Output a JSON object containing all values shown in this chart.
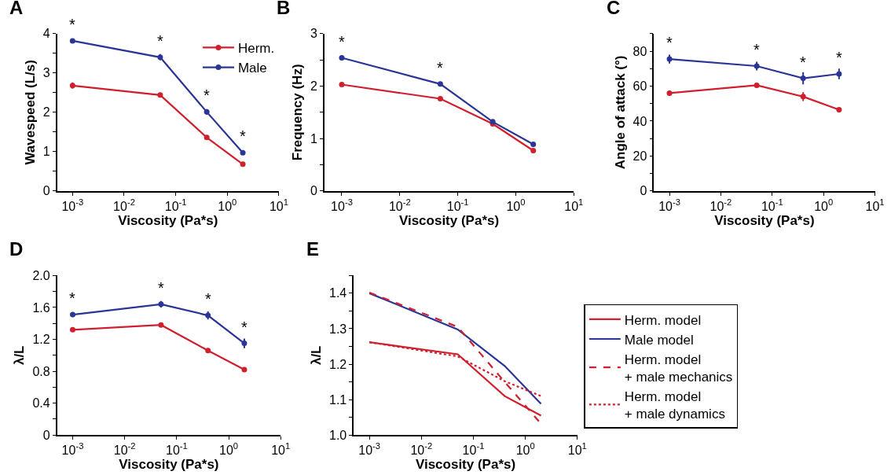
{
  "chart_data": [
    {
      "type": "line",
      "title": "A",
      "xlabel": "Viscosity (Pa*s)",
      "ylabel": "Wavespeed (L/s)",
      "log": "x",
      "marker": "circle",
      "legend": "top right",
      "x": [
        0.001,
        0.05,
        0.4,
        2
      ],
      "xlim": [
        0.0005,
        10
      ],
      "xticks": [
        {
          "value": 0.001,
          "label": "10$^{-3}$"
        },
        {
          "value": 0.01,
          "label": "10$^{-2}$"
        },
        {
          "value": 0.1,
          "label": "10$^{-1}$"
        },
        {
          "value": 1,
          "label": "10$^{0}$"
        },
        {
          "value": 10,
          "label": "10$^{1}$"
        }
      ],
      "ylim": [
        0,
        4
      ],
      "yticks": [
        0,
        {
          "value": 0.5,
          "label": null
        },
        1,
        {
          "value": 1.5,
          "label": null
        },
        2,
        {
          "value": 2.5,
          "label": null
        },
        3,
        {
          "value": 3.5,
          "label": null
        },
        4
      ],
      "series": [
        {
          "name": "Herm.",
          "color": "#d0202e",
          "values": [
            2.68,
            2.44,
            1.36,
            0.68
          ],
          "errors": [
            0.08,
            0.03,
            0.04,
            0.03
          ]
        },
        {
          "name": "Male",
          "color": "#2b3596",
          "values": [
            3.82,
            3.4,
            2.01,
            0.97
          ],
          "errors": [
            0.04,
            0.08,
            0.07,
            0.03
          ]
        }
      ],
      "annotations": [
        {
          "text": "*",
          "x": 0.001,
          "y": 3.82
        },
        {
          "text": "*",
          "x": 0.05,
          "y": 3.4
        },
        {
          "text": "*",
          "x": 0.4,
          "y": 2.01
        },
        {
          "text": "*",
          "x": 2,
          "y": 0.97
        }
      ]
    },
    {
      "type": "line",
      "title": "B",
      "xlabel": "Viscosity (Pa*s)",
      "ylabel": "Frequency (Hz)",
      "log": "x",
      "marker": "circle",
      "x": [
        0.001,
        0.05,
        0.4,
        2
      ],
      "xlim": [
        0.0005,
        10
      ],
      "xticks": [
        {
          "value": 0.001,
          "label": "10$^{-3}$"
        },
        {
          "value": 0.01,
          "label": "10$^{-2}$"
        },
        {
          "value": 0.1,
          "label": "10$^{-1}$"
        },
        {
          "value": 1,
          "label": "10$^{0}$"
        },
        {
          "value": 10,
          "label": "10$^{1}$"
        }
      ],
      "ylim": [
        0,
        3
      ],
      "yticks": [
        0,
        {
          "value": 0.5,
          "label": null
        },
        1,
        {
          "value": 1.5,
          "label": null
        },
        2,
        {
          "value": 2.5,
          "label": null
        },
        3
      ],
      "series": [
        {
          "color": "#d0202e",
          "values": [
            2.03,
            1.76,
            1.28,
            0.77
          ]
        },
        {
          "color": "#2b3596",
          "values": [
            2.54,
            2.04,
            1.32,
            0.89
          ]
        }
      ],
      "annotations": [
        {
          "text": "*",
          "x": 0.001,
          "y": 2.54
        },
        {
          "text": "*",
          "x": 0.05,
          "y": 2.04
        }
      ]
    },
    {
      "type": "line",
      "title": "C",
      "xlabel": "Viscosity (Pa*s)",
      "ylabel": "Angle of attack (°)",
      "log": "x",
      "marker": "circle",
      "x": [
        0.001,
        0.05,
        0.4,
        2
      ],
      "xlim": [
        0.0005,
        10
      ],
      "xticks": [
        {
          "value": 0.001,
          "label": "10$^{-3}$"
        },
        {
          "value": 0.01,
          "label": "10$^{-2}$"
        },
        {
          "value": 0.1,
          "label": "10$^{-1}$"
        },
        {
          "value": 1,
          "label": "10$^{0}$"
        },
        {
          "value": 10,
          "label": "10$^{1}$"
        }
      ],
      "ylim": [
        0,
        90
      ],
      "yticks": [
        0,
        {
          "value": 10,
          "label": null
        },
        20,
        {
          "value": 30,
          "label": null
        },
        40,
        {
          "value": 50,
          "label": null
        },
        60,
        {
          "value": 70,
          "label": null
        },
        80,
        {
          "value": 90,
          "label": null
        }
      ],
      "series": [
        {
          "color": "#d0202e",
          "values": [
            56,
            60.5,
            54,
            46.5
          ],
          "errors": [
            1.5,
            1,
            2.5,
            1
          ]
        },
        {
          "color": "#2b3596",
          "values": [
            75.5,
            71.5,
            64.5,
            67
          ],
          "errors": [
            2.5,
            2.5,
            3.5,
            3
          ]
        }
      ],
      "annotations": [
        {
          "text": "*",
          "x": 0.001,
          "y": 75.5
        },
        {
          "text": "*",
          "x": 0.05,
          "y": 71.5
        },
        {
          "text": "*",
          "x": 0.4,
          "y": 64.5
        },
        {
          "text": "*",
          "x": 2,
          "y": 67
        }
      ]
    },
    {
      "type": "line",
      "title": "D",
      "xlabel": "Viscosity (Pa*s)",
      "ylabel": "λ/L",
      "log": "x",
      "marker": "circle",
      "x": [
        0.001,
        0.05,
        0.4,
        2
      ],
      "xlim": [
        0.0005,
        10
      ],
      "xticks": [
        {
          "value": 0.001,
          "label": "10$^{-3}$"
        },
        {
          "value": 0.01,
          "label": "10$^{-2}$"
        },
        {
          "value": 0.1,
          "label": "10$^{-1}$"
        },
        {
          "value": 1,
          "label": "10$^{0}$"
        },
        {
          "value": 10,
          "label": "10$^{1}$"
        }
      ],
      "ylim": [
        0,
        2
      ],
      "yticks": [
        0,
        {
          "value": 0.2,
          "label": null
        },
        0.4,
        {
          "value": 0.6,
          "label": null
        },
        0.8,
        {
          "value": 1.0,
          "label": null
        },
        1.2,
        {
          "value": 1.4,
          "label": null
        },
        1.6,
        {
          "value": 1.8,
          "label": null
        },
        {
          "value": 2,
          "label": "2.0"
        }
      ],
      "series": [
        {
          "color": "#d0202e",
          "values": [
            1.32,
            1.38,
            1.06,
            0.82
          ],
          "errors": [
            0.02,
            0.02,
            0.03,
            0.01
          ]
        },
        {
          "color": "#2b3596",
          "values": [
            1.51,
            1.64,
            1.5,
            1.15
          ],
          "errors": [
            0.02,
            0.04,
            0.05,
            0.06
          ]
        }
      ],
      "annotations": [
        {
          "text": "*",
          "x": 0.001,
          "y": 1.51
        },
        {
          "text": "*",
          "x": 0.05,
          "y": 1.64
        },
        {
          "text": "*",
          "x": 0.4,
          "y": 1.5
        },
        {
          "text": "*",
          "x": 2,
          "y": 1.15
        }
      ]
    },
    {
      "type": "line",
      "title": "E",
      "xlabel": "Viscosity (Pa*s)",
      "ylabel": "λ/L",
      "log": "x",
      "marker": "none",
      "legend": "right",
      "x": [
        0.001,
        0.05,
        0.4,
        2
      ],
      "xlim": [
        0.0005,
        10
      ],
      "xticks": [
        {
          "value": 0.001,
          "label": "10$^{-3}$"
        },
        {
          "value": 0.01,
          "label": "10$^{-2}$"
        },
        {
          "value": 0.1,
          "label": "10$^{-1}$"
        },
        {
          "value": 1,
          "label": "10$^{0}$"
        },
        {
          "value": 10,
          "label": "10$^{1}$"
        }
      ],
      "ylim": [
        1.0,
        1.45
      ],
      "yticks": [
        {
          "value": 1.0,
          "label": "1.0"
        },
        {
          "value": 1.05,
          "label": null
        },
        1.1,
        {
          "value": 1.15,
          "label": null
        },
        1.2,
        {
          "value": 1.25,
          "label": null
        },
        1.3,
        {
          "value": 1.35,
          "label": null
        },
        1.4,
        {
          "value": 1.45,
          "label": null
        }
      ],
      "series": [
        {
          "name": "Herm. model",
          "color": "#d0202e",
          "line_style": "solid",
          "values": [
            1.262,
            1.228,
            1.11,
            1.055
          ]
        },
        {
          "name": "Male model",
          "color": "#2b3596",
          "line_style": "solid",
          "values": [
            1.4,
            1.298,
            1.195,
            1.088
          ]
        },
        {
          "name": "Herm. model\n+ male mechanics",
          "color": "#d0202e",
          "line_style": "dashed",
          "values": [
            1.402,
            1.305,
            1.15,
            1.032
          ]
        },
        {
          "name": "Herm. model\n+ male dynamics",
          "color": "#d0202e",
          "line_style": "dotted",
          "values": [
            1.262,
            1.222,
            1.152,
            1.11
          ]
        }
      ]
    }
  ]
}
